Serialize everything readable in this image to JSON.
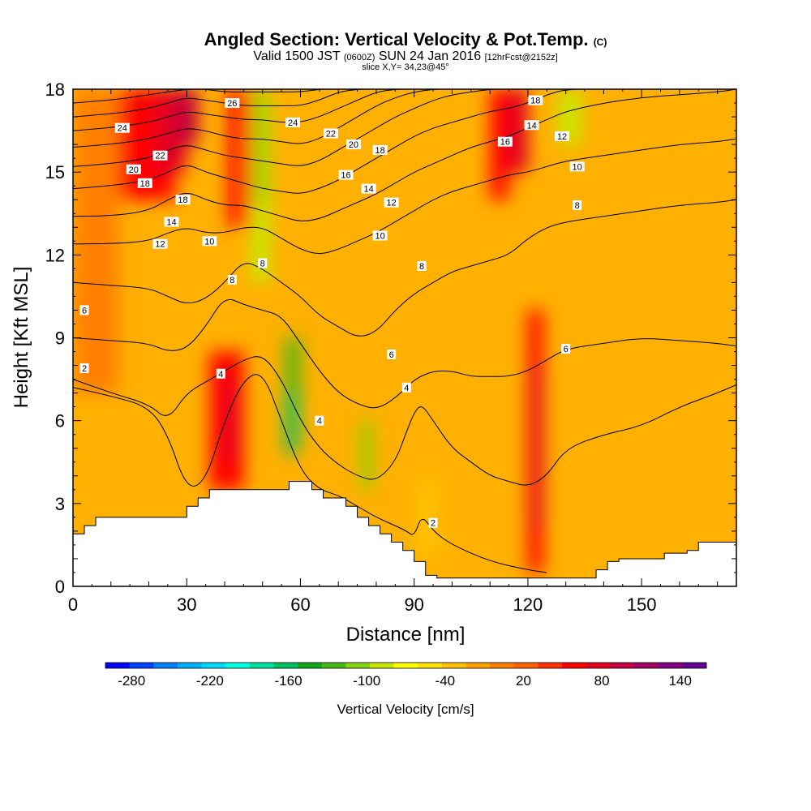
{
  "header": {
    "title_main": "Angled Section: Vertical Velocity & Pot.Temp.",
    "title_mark": "(C)",
    "valid_prefix": "Valid 1500 JST",
    "valid_zulu": "(0600Z)",
    "valid_date": "SUN 24 Jan 2016",
    "forecast": "[12hrFcst@2152z]",
    "slice": "slice X,Y= 34,23@45°"
  },
  "chart_data": {
    "type": "heatmap",
    "xlabel": "Distance [nm]",
    "ylabel": "Height [Kft MSL]",
    "xlim": [
      0,
      175
    ],
    "ylim": [
      0,
      18
    ],
    "x_ticks": [
      0,
      30,
      60,
      90,
      120,
      150
    ],
    "y_ticks": [
      0,
      3,
      6,
      9,
      12,
      15,
      18
    ],
    "colorbar": {
      "label": "Vertical Velocity [cm/s]",
      "min": -300,
      "max": 160,
      "ticks": [
        -280,
        -220,
        -160,
        -100,
        -40,
        20,
        80,
        140
      ],
      "colors": [
        "#0000ff",
        "#0040ff",
        "#0080ff",
        "#00b0ff",
        "#00d8ff",
        "#00ffe0",
        "#00e0a0",
        "#00c060",
        "#10a820",
        "#48b818",
        "#88d010",
        "#c8e800",
        "#ffff00",
        "#ffe000",
        "#ffc000",
        "#ffa000",
        "#ff8000",
        "#ff6000",
        "#ff3000",
        "#ff0000",
        "#e00020",
        "#c00040",
        "#a00060",
        "#800080",
        "#600090"
      ]
    },
    "vertical_velocity_cells": [
      {
        "x": [
          0,
          12
        ],
        "y": [
          7,
          18
        ],
        "value": 10
      },
      {
        "x": [
          12,
          27
        ],
        "y": [
          14,
          18
        ],
        "value": 50
      },
      {
        "x": [
          22,
          30
        ],
        "y": [
          15,
          18
        ],
        "value": 80
      },
      {
        "x": [
          28,
          33
        ],
        "y": [
          16,
          18
        ],
        "value": 90
      },
      {
        "x": [
          41,
          47
        ],
        "y": [
          13,
          18
        ],
        "value": 50
      },
      {
        "x": [
          47,
          52
        ],
        "y": [
          11,
          18
        ],
        "value": -80
      },
      {
        "x": [
          48,
          51
        ],
        "y": [
          14,
          18
        ],
        "value": -110
      },
      {
        "x": [
          56,
          60
        ],
        "y": [
          5,
          9
        ],
        "value": -130
      },
      {
        "x": [
          56,
          59
        ],
        "y": [
          4.8,
          7
        ],
        "value": -160
      },
      {
        "x": [
          76,
          79
        ],
        "y": [
          3.5,
          6
        ],
        "value": -100
      },
      {
        "x": [
          36,
          45
        ],
        "y": [
          3.5,
          8.5
        ],
        "value": 60
      },
      {
        "x": [
          40,
          43
        ],
        "y": [
          4.5,
          7.5
        ],
        "value": 80
      },
      {
        "x": [
          90,
          97
        ],
        "y": [
          1,
          4
        ],
        "value": -40
      },
      {
        "x": [
          110,
          115
        ],
        "y": [
          14,
          18
        ],
        "value": 60
      },
      {
        "x": [
          115,
          120
        ],
        "y": [
          15,
          18
        ],
        "value": 80
      },
      {
        "x": [
          120,
          124
        ],
        "y": [
          0.5,
          10
        ],
        "value": 50
      },
      {
        "x": [
          121,
          124
        ],
        "y": [
          2,
          8
        ],
        "value": 80
      },
      {
        "x": [
          128,
          134
        ],
        "y": [
          16,
          18
        ],
        "value": -80
      }
    ],
    "theta_contours": [
      {
        "level": 2,
        "x": [
          0,
          10,
          20,
          25,
          30,
          35,
          40,
          45,
          50,
          55,
          60,
          65,
          70,
          75,
          80,
          85,
          88,
          90,
          92,
          95,
          100,
          110,
          120,
          125
        ],
        "y": [
          7.2,
          6.9,
          6.5,
          5.5,
          3.5,
          3.8,
          6,
          7.5,
          7.8,
          6,
          4.2,
          3.5,
          3.3,
          2.9,
          2.5,
          2.2,
          2.0,
          1.8,
          2.6,
          2.0,
          1.5,
          0.9,
          0.6,
          0.5
        ]
      },
      {
        "level": 4,
        "x": [
          0,
          10,
          20,
          25,
          30,
          35,
          40,
          45,
          50,
          55,
          60,
          65,
          70,
          75,
          80,
          85,
          88,
          90,
          92,
          95,
          100,
          105,
          110,
          115,
          120,
          125,
          130,
          140,
          150,
          160,
          170,
          175
        ],
        "y": [
          7.5,
          7.0,
          6.6,
          6.0,
          7.0,
          7.4,
          7.8,
          8.2,
          8.4,
          7.5,
          6.0,
          5.0,
          4.4,
          4.0,
          3.8,
          4.5,
          5.6,
          6.3,
          6.6,
          6.0,
          5.0,
          4.5,
          4.0,
          3.8,
          3.6,
          4.0,
          5.0,
          5.5,
          5.8,
          6.5,
          7.0,
          7.3
        ]
      },
      {
        "level": 6,
        "x": [
          0,
          10,
          20,
          25,
          30,
          35,
          40,
          45,
          50,
          55,
          60,
          65,
          70,
          75,
          80,
          85,
          90,
          95,
          100,
          105,
          110,
          115,
          120,
          125,
          130,
          140,
          150,
          160,
          170,
          175
        ],
        "y": [
          9.0,
          8.9,
          8.8,
          8.5,
          8.6,
          9.4,
          10.5,
          10.2,
          10.0,
          9.8,
          8.8,
          7.8,
          7.0,
          6.6,
          6.4,
          6.8,
          7.5,
          7.8,
          7.8,
          7.6,
          7.6,
          7.6,
          7.8,
          8.2,
          8.6,
          8.8,
          9.0,
          8.9,
          8.8,
          8.7
        ]
      },
      {
        "level": 8,
        "x": [
          0,
          10,
          20,
          25,
          30,
          35,
          40,
          45,
          50,
          55,
          60,
          65,
          70,
          75,
          80,
          85,
          90,
          95,
          100,
          105,
          110,
          115,
          120,
          125,
          130,
          140,
          150,
          160,
          170,
          175
        ],
        "y": [
          11.0,
          10.9,
          10.8,
          10.5,
          10.2,
          10.4,
          11.0,
          11.8,
          11.5,
          11.0,
          10.5,
          9.8,
          9.4,
          9.0,
          9.2,
          10.0,
          10.6,
          11.0,
          11.4,
          11.6,
          11.8,
          12.0,
          12.6,
          13.0,
          13.2,
          13.4,
          13.6,
          13.8,
          13.9,
          14.0
        ]
      },
      {
        "level": 10,
        "x": [
          0,
          10,
          20,
          25,
          30,
          35,
          40,
          45,
          50,
          55,
          60,
          65,
          70,
          75,
          80,
          85,
          90,
          95,
          100,
          105,
          110,
          115,
          120,
          125,
          130,
          140,
          150,
          160,
          170,
          175
        ],
        "y": [
          12.4,
          12.4,
          12.5,
          12.8,
          13.0,
          12.8,
          12.8,
          13.0,
          13.0,
          12.6,
          12.2,
          12.0,
          12.2,
          12.5,
          12.8,
          13.2,
          13.6,
          14.0,
          14.3,
          14.5,
          14.7,
          14.9,
          15.0,
          15.2,
          15.4,
          15.6,
          15.8,
          16.0,
          16.1,
          16.2
        ]
      },
      {
        "level": 12,
        "x": [
          0,
          10,
          20,
          25,
          30,
          35,
          40,
          45,
          50,
          55,
          60,
          65,
          70,
          75,
          80,
          85,
          90,
          95,
          100,
          105,
          110,
          115,
          120,
          125,
          130,
          140,
          150,
          160,
          170,
          175
        ],
        "y": [
          13.4,
          13.4,
          13.6,
          14.0,
          14.3,
          14.0,
          13.8,
          13.8,
          13.6,
          13.4,
          13.2,
          13.3,
          13.6,
          13.9,
          14.2,
          14.6,
          15.0,
          15.3,
          15.6,
          15.9,
          16.1,
          16.3,
          16.6,
          16.9,
          17.2,
          17.5,
          17.7,
          17.8,
          17.9,
          18.0
        ]
      },
      {
        "level": 14,
        "x": [
          0,
          10,
          20,
          25,
          30,
          35,
          40,
          45,
          50,
          55,
          60,
          65,
          70,
          75,
          80,
          85,
          90,
          95,
          100,
          105,
          110,
          115,
          120,
          125,
          130,
          140,
          150,
          160,
          170,
          175
        ],
        "y": [
          14.4,
          14.5,
          14.7,
          15.0,
          15.3,
          15.0,
          14.8,
          14.6,
          14.4,
          14.3,
          14.2,
          14.4,
          14.7,
          15.1,
          15.5,
          15.9,
          16.3,
          16.6,
          16.8,
          17.0,
          17.2,
          17.3,
          17.5,
          17.8,
          18.0,
          18.0,
          18.0,
          18.0,
          18.0,
          18.0
        ]
      },
      {
        "level": 16,
        "x": [
          0,
          10,
          20,
          25,
          30,
          35,
          40,
          45,
          50,
          55,
          60,
          65,
          70,
          75,
          80,
          85,
          90,
          95,
          100,
          105,
          110,
          115,
          120,
          125
        ],
        "y": [
          15.2,
          15.3,
          15.5,
          15.8,
          16.0,
          15.8,
          15.6,
          15.5,
          15.4,
          15.3,
          15.2,
          15.4,
          15.8,
          16.2,
          16.6,
          17.0,
          17.3,
          17.6,
          17.8,
          17.9,
          18.0,
          18.0,
          18.0,
          18.0
        ]
      },
      {
        "level": 18,
        "x": [
          0,
          10,
          20,
          25,
          30,
          35,
          40,
          45,
          50,
          55,
          60,
          65,
          70,
          75,
          80,
          85,
          90,
          95,
          100
        ],
        "y": [
          15.9,
          16.0,
          16.2,
          16.4,
          16.6,
          16.5,
          16.3,
          16.2,
          16.2,
          16.1,
          16.0,
          16.2,
          16.6,
          17.0,
          17.4,
          17.7,
          17.9,
          18.0,
          18.0
        ]
      },
      {
        "level": 20,
        "x": [
          0,
          10,
          20,
          25,
          30,
          35,
          40,
          45,
          50,
          55,
          60,
          65,
          70,
          75,
          80,
          85,
          90
        ],
        "y": [
          16.5,
          16.6,
          16.8,
          17.0,
          17.2,
          17.1,
          17.0,
          16.9,
          16.9,
          16.8,
          16.8,
          17.0,
          17.3,
          17.6,
          17.9,
          18.0,
          18.0
        ]
      },
      {
        "level": 22,
        "x": [
          0,
          10,
          20,
          25,
          30,
          35,
          40,
          45,
          50,
          55,
          60,
          65,
          70,
          75,
          80
        ],
        "y": [
          17.0,
          17.1,
          17.3,
          17.5,
          17.7,
          17.6,
          17.5,
          17.4,
          17.4,
          17.4,
          17.4,
          17.6,
          17.9,
          18.0,
          18.0
        ]
      },
      {
        "level": 24,
        "x": [
          0,
          10,
          20,
          25,
          30,
          35,
          40,
          45,
          50,
          55,
          60,
          65,
          70
        ],
        "y": [
          17.5,
          17.6,
          17.8,
          17.9,
          18.0,
          18.0,
          17.9,
          17.9,
          17.9,
          17.9,
          17.9,
          18.0,
          18.0
        ]
      }
    ],
    "contour_labels": [
      {
        "text": "26",
        "x": 42,
        "y": 17.5
      },
      {
        "text": "24",
        "x": 13,
        "y": 16.6
      },
      {
        "text": "24",
        "x": 58,
        "y": 16.8
      },
      {
        "text": "22",
        "x": 23,
        "y": 15.6
      },
      {
        "text": "22",
        "x": 68,
        "y": 16.4
      },
      {
        "text": "20",
        "x": 16,
        "y": 15.1
      },
      {
        "text": "20",
        "x": 74,
        "y": 16.0
      },
      {
        "text": "18",
        "x": 19,
        "y": 14.6
      },
      {
        "text": "18",
        "x": 29,
        "y": 14.0
      },
      {
        "text": "18",
        "x": 81,
        "y": 15.8
      },
      {
        "text": "18",
        "x": 122,
        "y": 17.6
      },
      {
        "text": "16",
        "x": 72,
        "y": 14.9
      },
      {
        "text": "16",
        "x": 114,
        "y": 16.1
      },
      {
        "text": "14",
        "x": 26,
        "y": 13.2
      },
      {
        "text": "14",
        "x": 78,
        "y": 14.4
      },
      {
        "text": "14",
        "x": 121,
        "y": 16.7
      },
      {
        "text": "12",
        "x": 23,
        "y": 12.4
      },
      {
        "text": "12",
        "x": 84,
        "y": 13.9
      },
      {
        "text": "12",
        "x": 129,
        "y": 16.3
      },
      {
        "text": "10",
        "x": 36,
        "y": 12.5
      },
      {
        "text": "10",
        "x": 81,
        "y": 12.7
      },
      {
        "text": "10",
        "x": 133,
        "y": 15.2
      },
      {
        "text": "8",
        "x": 50,
        "y": 11.7
      },
      {
        "text": "8",
        "x": 92,
        "y": 11.6
      },
      {
        "text": "8",
        "x": 133,
        "y": 13.8
      },
      {
        "text": "8",
        "x": 42,
        "y": 11.1
      },
      {
        "text": "6",
        "x": 3,
        "y": 10.0
      },
      {
        "text": "6",
        "x": 84,
        "y": 8.4
      },
      {
        "text": "6",
        "x": 130,
        "y": 8.6
      },
      {
        "text": "4",
        "x": 39,
        "y": 7.7
      },
      {
        "text": "4",
        "x": 88,
        "y": 7.2
      },
      {
        "text": "4",
        "x": 65,
        "y": 6.0
      },
      {
        "text": "2",
        "x": 3,
        "y": 7.9
      },
      {
        "text": "2",
        "x": 95,
        "y": 2.3
      }
    ],
    "terrain": {
      "x": [
        0,
        3,
        6,
        9,
        12,
        15,
        18,
        21,
        24,
        27,
        30,
        33,
        36,
        39,
        42,
        45,
        48,
        51,
        54,
        57,
        60,
        63,
        66,
        69,
        72,
        75,
        78,
        81,
        84,
        87,
        90,
        93,
        96,
        99,
        102,
        105,
        108,
        111,
        114,
        117,
        120,
        123,
        126,
        129,
        132,
        135,
        138,
        141,
        144,
        147,
        150,
        153,
        156,
        159,
        162,
        165,
        168,
        171,
        175
      ],
      "y": [
        1.9,
        2.2,
        2.5,
        2.5,
        2.5,
        2.5,
        2.5,
        2.5,
        2.5,
        2.5,
        2.9,
        3.2,
        3.5,
        3.5,
        3.5,
        3.5,
        3.5,
        3.5,
        3.5,
        3.8,
        3.8,
        3.5,
        3.2,
        3.2,
        2.9,
        2.5,
        2.2,
        1.9,
        1.6,
        1.3,
        0.9,
        0.4,
        0.3,
        0.3,
        0.3,
        0.3,
        0.3,
        0.3,
        0.3,
        0.3,
        0.3,
        0.3,
        0.3,
        0.3,
        0.3,
        0.3,
        0.6,
        0.9,
        1.0,
        1.0,
        1.0,
        1.0,
        1.2,
        1.2,
        1.3,
        1.6,
        1.6,
        1.6,
        1.6
      ]
    }
  }
}
